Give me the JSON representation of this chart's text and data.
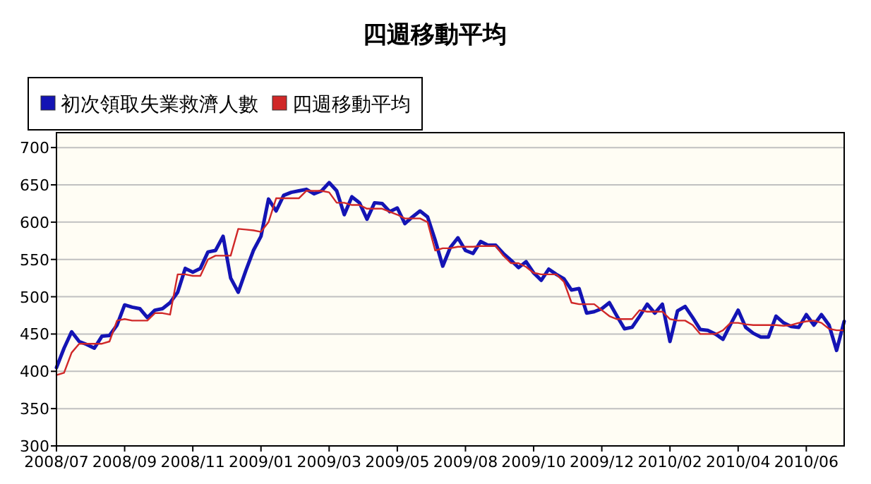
{
  "chart_data": {
    "type": "line",
    "title": "四週移動平均",
    "categories": [
      "2008/07",
      null,
      null,
      null,
      null,
      null,
      null,
      null,
      null,
      "2008/09",
      null,
      null,
      null,
      null,
      null,
      null,
      null,
      null,
      "2008/11",
      null,
      null,
      null,
      null,
      null,
      null,
      null,
      null,
      "2009/01",
      null,
      null,
      null,
      null,
      null,
      null,
      null,
      null,
      "2009/03",
      null,
      null,
      null,
      null,
      null,
      null,
      null,
      null,
      "2009/05",
      null,
      null,
      null,
      null,
      null,
      null,
      null,
      null,
      "2009/08",
      null,
      null,
      null,
      null,
      null,
      null,
      null,
      null,
      "2009/10",
      null,
      null,
      null,
      null,
      null,
      null,
      null,
      null,
      "2009/12",
      null,
      null,
      null,
      null,
      null,
      null,
      null,
      null,
      "2010/02",
      null,
      null,
      null,
      null,
      null,
      null,
      null,
      null,
      "2010/04",
      null,
      null,
      null,
      null,
      null,
      null,
      null,
      null,
      "2010/06",
      null,
      null,
      null,
      null,
      null
    ],
    "series": [
      {
        "name": "初次領取失業救濟人數",
        "color": "#1414b4",
        "values": [
          405,
          431,
          453,
          440,
          436,
          431,
          447,
          448,
          462,
          489,
          486,
          484,
          472,
          482,
          484,
          492,
          506,
          538,
          533,
          538,
          560,
          562,
          581,
          525,
          506,
          535,
          562,
          581,
          631,
          615,
          636,
          640,
          642,
          644,
          638,
          642,
          653,
          642,
          610,
          634,
          626,
          604,
          626,
          625,
          614,
          619,
          598,
          607,
          615,
          607,
          576,
          541,
          566,
          579,
          562,
          558,
          574,
          569,
          569,
          558,
          549,
          539,
          547,
          532,
          522,
          537,
          530,
          524,
          509,
          511,
          478,
          480,
          484,
          492,
          474,
          457,
          459,
          474,
          490,
          478,
          490,
          440,
          481,
          487,
          472,
          456,
          455,
          450,
          443,
          463,
          482,
          459,
          451,
          446,
          446,
          474,
          465,
          460,
          459,
          476,
          462,
          476,
          462,
          428,
          467
        ]
      },
      {
        "name": "四週移動平均",
        "color": "#d02828",
        "values": [
          395,
          398,
          425,
          437,
          437,
          437,
          437,
          440,
          468,
          470,
          468,
          468,
          468,
          478,
          478,
          476,
          530,
          530,
          528,
          528,
          550,
          555,
          555,
          555,
          591,
          590,
          589,
          587,
          600,
          632,
          632,
          632,
          632,
          642,
          642,
          642,
          640,
          626,
          626,
          623,
          623,
          618,
          618,
          618,
          614,
          610,
          605,
          605,
          605,
          600,
          562,
          565,
          565,
          567,
          567,
          567,
          568,
          568,
          568,
          555,
          545,
          545,
          540,
          532,
          530,
          530,
          530,
          520,
          492,
          490,
          490,
          490,
          482,
          474,
          470,
          470,
          470,
          482,
          480,
          480,
          480,
          470,
          468,
          468,
          462,
          450,
          450,
          450,
          455,
          465,
          465,
          463,
          462,
          462,
          462,
          462,
          461,
          462,
          465,
          467,
          468,
          465,
          457,
          455,
          455
        ]
      }
    ],
    "ylim": [
      300,
      720
    ],
    "yticks": [
      300,
      350,
      400,
      450,
      500,
      550,
      600,
      650,
      700
    ],
    "grid": "y",
    "legend": "top left",
    "line_style": "solid",
    "marker": "none"
  }
}
